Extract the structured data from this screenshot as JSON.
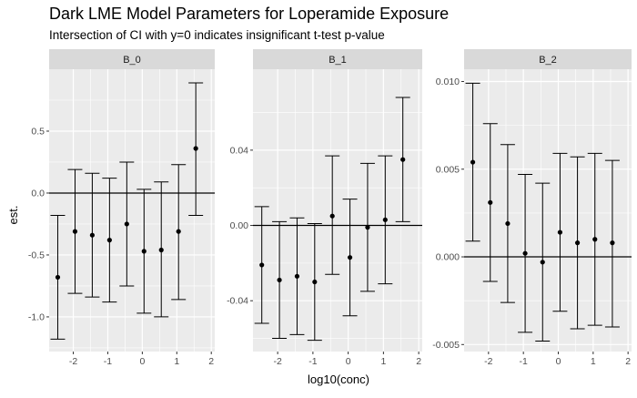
{
  "chart_data": {
    "type": "errorbar",
    "title": "Dark LME Model Parameters for Loperamide Exposure",
    "subtitle": "Intersection of CI with y=0 indicates insignificant t-test p-value",
    "xlabel": "log10(conc)",
    "ylabel": "est.",
    "x_ticks": [
      -2,
      -1,
      0,
      1,
      2
    ],
    "x_tick_labels": [
      "-2",
      "-1",
      "0",
      "1",
      "2"
    ],
    "xlim": [
      -2.7,
      2.1
    ],
    "reference_line_y": 0,
    "grid": true,
    "panel_background": "#ebebeb",
    "strip_background": "#d9d9d9",
    "grid_color": "#ffffff",
    "point_color": "#000000",
    "panels": [
      {
        "name": "B_0",
        "ylim": [
          -1.28,
          1.0
        ],
        "y_ticks": [
          -1.0,
          -0.5,
          0.0,
          0.5
        ],
        "y_tick_labels": [
          "-1.0",
          "-0.5",
          "0.0",
          "0.5"
        ],
        "points": [
          {
            "x": -2.45,
            "y": -0.68,
            "lo": -1.18,
            "hi": -0.18
          },
          {
            "x": -1.95,
            "y": -0.31,
            "lo": -0.81,
            "hi": 0.19
          },
          {
            "x": -1.45,
            "y": -0.34,
            "lo": -0.84,
            "hi": 0.16
          },
          {
            "x": -0.95,
            "y": -0.38,
            "lo": -0.88,
            "hi": 0.12
          },
          {
            "x": -0.45,
            "y": -0.25,
            "lo": -0.75,
            "hi": 0.25
          },
          {
            "x": 0.05,
            "y": -0.47,
            "lo": -0.97,
            "hi": 0.03
          },
          {
            "x": 0.55,
            "y": -0.46,
            "lo": -1.0,
            "hi": 0.09
          },
          {
            "x": 1.05,
            "y": -0.31,
            "lo": -0.86,
            "hi": 0.23
          },
          {
            "x": 1.55,
            "y": 0.36,
            "lo": -0.18,
            "hi": 0.89
          }
        ]
      },
      {
        "name": "B_1",
        "ylim": [
          -0.067,
          0.083
        ],
        "y_ticks": [
          -0.04,
          0.0,
          0.04
        ],
        "y_tick_labels": [
          "-0.04",
          "0.00",
          "0.04"
        ],
        "points": [
          {
            "x": -2.45,
            "y": -0.021,
            "lo": -0.052,
            "hi": 0.01
          },
          {
            "x": -1.95,
            "y": -0.029,
            "lo": -0.06,
            "hi": 0.002
          },
          {
            "x": -1.45,
            "y": -0.027,
            "lo": -0.058,
            "hi": 0.004
          },
          {
            "x": -0.95,
            "y": -0.03,
            "lo": -0.061,
            "hi": 0.001
          },
          {
            "x": -0.45,
            "y": 0.005,
            "lo": -0.026,
            "hi": 0.037
          },
          {
            "x": 0.05,
            "y": -0.017,
            "lo": -0.048,
            "hi": 0.014
          },
          {
            "x": 0.55,
            "y": -0.001,
            "lo": -0.035,
            "hi": 0.033
          },
          {
            "x": 1.05,
            "y": 0.003,
            "lo": -0.031,
            "hi": 0.037
          },
          {
            "x": 1.55,
            "y": 0.035,
            "lo": 0.002,
            "hi": 0.068
          }
        ]
      },
      {
        "name": "B_2",
        "ylim": [
          -0.0054,
          0.0107
        ],
        "y_ticks": [
          -0.005,
          0.0,
          0.005,
          0.01
        ],
        "y_tick_labels": [
          "-0.005",
          "0.000",
          "0.005",
          "0.010"
        ],
        "points": [
          {
            "x": -2.45,
            "y": 0.0054,
            "lo": 0.0009,
            "hi": 0.0099
          },
          {
            "x": -1.95,
            "y": 0.0031,
            "lo": -0.0014,
            "hi": 0.0076
          },
          {
            "x": -1.45,
            "y": 0.0019,
            "lo": -0.0026,
            "hi": 0.0064
          },
          {
            "x": -0.95,
            "y": 0.0002,
            "lo": -0.0043,
            "hi": 0.0047
          },
          {
            "x": -0.45,
            "y": -0.0003,
            "lo": -0.0048,
            "hi": 0.0042
          },
          {
            "x": 0.05,
            "y": 0.0014,
            "lo": -0.0031,
            "hi": 0.0059
          },
          {
            "x": 0.55,
            "y": 0.0008,
            "lo": -0.0041,
            "hi": 0.0057
          },
          {
            "x": 1.05,
            "y": 0.001,
            "lo": -0.0039,
            "hi": 0.0059
          },
          {
            "x": 1.55,
            "y": 0.0008,
            "lo": -0.004,
            "hi": 0.0055
          }
        ]
      }
    ]
  }
}
